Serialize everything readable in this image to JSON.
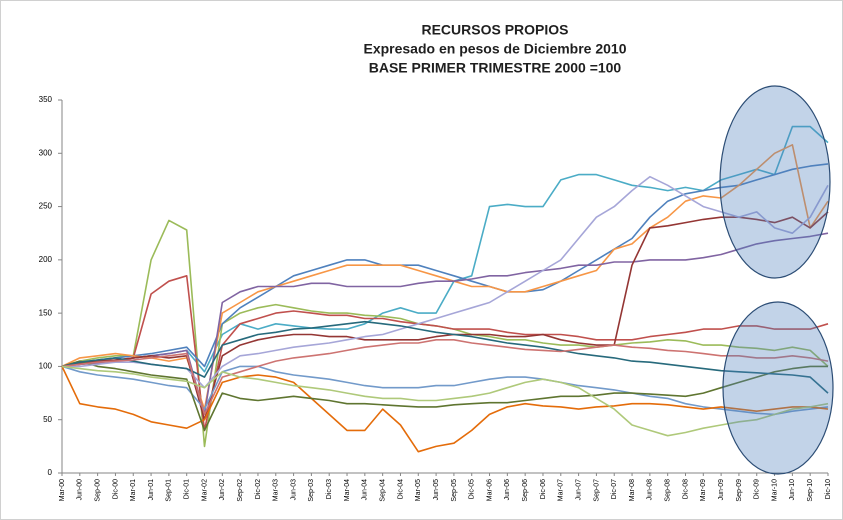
{
  "chart_data": {
    "type": "line",
    "title": [
      "RECURSOS PROPIOS",
      "Expresado en pesos de Diciembre 2010",
      "BASE PRIMER TRIMESTRE 2000 =100"
    ],
    "categories": [
      "Mar-00",
      "Jun-00",
      "Sep-00",
      "Dic-00",
      "Mar-01",
      "Jun-01",
      "Sep-01",
      "Dic-01",
      "Mar-02",
      "Jun-02",
      "Sep-02",
      "Dic-02",
      "Mar-03",
      "Jun-03",
      "Sep-03",
      "Dic-03",
      "Mar-04",
      "Jun-04",
      "Sep-04",
      "Dic-04",
      "Mar-05",
      "Jun-05",
      "Sep-05",
      "Dic-05",
      "Mar-06",
      "Jun-06",
      "Sep-06",
      "Dic-06",
      "Mar-07",
      "Jun-07",
      "Sep-07",
      "Dic-07",
      "Mar-08",
      "Jun-08",
      "Sep-08",
      "Dic-08",
      "Mar-09",
      "Jun-09",
      "Sep-09",
      "Dic-09",
      "Mar-10",
      "Jun-10",
      "Sep-10",
      "Dic-10"
    ],
    "ylim": [
      0,
      350
    ],
    "yticks": [
      0,
      50,
      100,
      150,
      200,
      250,
      300,
      350
    ],
    "grid": false,
    "series": [
      {
        "color": "#4BACC6",
        "values": [
          100,
          102,
          104,
          106,
          108,
          110,
          112,
          115,
          95,
          130,
          140,
          135,
          140,
          138,
          136,
          135,
          135,
          140,
          150,
          155,
          150,
          150,
          180,
          185,
          250,
          252,
          250,
          250,
          275,
          280,
          280,
          275,
          270,
          268,
          265,
          268,
          265,
          275,
          280,
          285,
          280,
          325,
          325,
          310
        ]
      },
      {
        "color": "#9BBB59",
        "values": [
          100,
          105,
          108,
          110,
          110,
          200,
          237,
          228,
          25,
          140,
          150,
          155,
          158,
          155,
          152,
          150,
          150,
          148,
          147,
          145,
          140,
          138,
          135,
          130,
          128,
          125,
          125,
          122,
          120,
          120,
          118,
          120,
          122,
          123,
          125,
          124,
          120,
          120,
          118,
          117,
          115,
          118,
          115,
          100
        ]
      },
      {
        "color": "#C0504D",
        "values": [
          100,
          102,
          104,
          105,
          108,
          168,
          180,
          185,
          40,
          120,
          140,
          145,
          150,
          152,
          150,
          148,
          148,
          145,
          145,
          142,
          140,
          138,
          135,
          135,
          135,
          132,
          130,
          130,
          130,
          128,
          125,
          125,
          125,
          128,
          130,
          132,
          135,
          135,
          138,
          138,
          135,
          135,
          135,
          140
        ]
      },
      {
        "color": "#4F81BD",
        "values": [
          100,
          104,
          106,
          108,
          110,
          112,
          115,
          118,
          100,
          140,
          155,
          165,
          175,
          185,
          190,
          195,
          200,
          200,
          195,
          195,
          195,
          190,
          185,
          180,
          175,
          170,
          170,
          172,
          180,
          190,
          200,
          210,
          220,
          240,
          255,
          262,
          265,
          268,
          270,
          275,
          280,
          285,
          288,
          290
        ]
      },
      {
        "color": "#F79646",
        "values": [
          100,
          108,
          110,
          112,
          110,
          108,
          105,
          108,
          60,
          150,
          160,
          170,
          175,
          180,
          185,
          190,
          195,
          195,
          195,
          195,
          190,
          185,
          180,
          175,
          175,
          170,
          170,
          175,
          180,
          185,
          190,
          210,
          215,
          230,
          240,
          255,
          260,
          258,
          270,
          285,
          300,
          308,
          230,
          255
        ]
      },
      {
        "color": "#8064A2",
        "values": [
          100,
          102,
          103,
          105,
          108,
          110,
          112,
          115,
          55,
          160,
          170,
          175,
          175,
          175,
          178,
          178,
          175,
          175,
          175,
          175,
          178,
          180,
          180,
          182,
          185,
          185,
          188,
          190,
          192,
          195,
          195,
          198,
          198,
          200,
          200,
          200,
          202,
          205,
          210,
          215,
          218,
          220,
          222,
          225
        ]
      },
      {
        "color": "#943634",
        "values": [
          100,
          103,
          105,
          106,
          108,
          110,
          108,
          110,
          50,
          110,
          120,
          125,
          128,
          130,
          130,
          128,
          128,
          125,
          125,
          125,
          125,
          128,
          130,
          130,
          130,
          128,
          128,
          130,
          125,
          122,
          120,
          120,
          195,
          230,
          232,
          235,
          238,
          240,
          240,
          238,
          235,
          240,
          230,
          245
        ]
      },
      {
        "color": "#729ACA",
        "values": [
          100,
          95,
          92,
          90,
          88,
          85,
          82,
          80,
          60,
          95,
          100,
          100,
          95,
          92,
          90,
          88,
          85,
          82,
          80,
          80,
          80,
          82,
          82,
          85,
          88,
          90,
          90,
          88,
          85,
          82,
          80,
          78,
          75,
          72,
          70,
          65,
          62,
          60,
          58,
          56,
          55,
          58,
          60,
          62
        ]
      },
      {
        "color": "#E46C0A",
        "values": [
          100,
          65,
          62,
          60,
          55,
          48,
          45,
          42,
          50,
          85,
          90,
          92,
          90,
          85,
          70,
          55,
          40,
          40,
          60,
          45,
          20,
          25,
          28,
          40,
          55,
          62,
          65,
          63,
          62,
          60,
          62,
          63,
          65,
          65,
          64,
          62,
          60,
          62,
          60,
          58,
          60,
          62,
          62,
          60
        ]
      },
      {
        "color": "#5F7530",
        "values": [
          100,
          105,
          100,
          98,
          95,
          92,
          90,
          88,
          40,
          75,
          70,
          68,
          70,
          72,
          70,
          68,
          65,
          65,
          64,
          63,
          62,
          62,
          64,
          65,
          66,
          66,
          68,
          70,
          72,
          72,
          73,
          75,
          75,
          74,
          73,
          72,
          75,
          80,
          85,
          90,
          95,
          98,
          100,
          100
        ]
      },
      {
        "color": "#A6A6D8",
        "values": [
          100,
          100,
          102,
          104,
          104,
          102,
          100,
          98,
          80,
          100,
          110,
          112,
          115,
          118,
          120,
          122,
          125,
          128,
          130,
          135,
          140,
          145,
          150,
          155,
          160,
          170,
          180,
          190,
          200,
          220,
          240,
          250,
          265,
          278,
          270,
          260,
          250,
          245,
          240,
          245,
          230,
          225,
          240,
          270
        ]
      },
      {
        "color": "#276A7C",
        "values": [
          100,
          104,
          106,
          108,
          105,
          102,
          100,
          98,
          90,
          120,
          125,
          130,
          132,
          135,
          136,
          138,
          140,
          142,
          140,
          138,
          135,
          132,
          130,
          128,
          125,
          122,
          120,
          118,
          115,
          112,
          110,
          108,
          105,
          104,
          102,
          100,
          98,
          96,
          95,
          94,
          93,
          92,
          90,
          75
        ]
      },
      {
        "color": "#CD7371",
        "values": [
          100,
          102,
          104,
          105,
          106,
          108,
          110,
          112,
          55,
          90,
          95,
          100,
          105,
          108,
          110,
          112,
          115,
          118,
          120,
          122,
          122,
          125,
          125,
          122,
          120,
          118,
          116,
          115,
          114,
          116,
          118,
          120,
          118,
          117,
          115,
          114,
          112,
          110,
          110,
          108,
          108,
          110,
          108,
          105
        ]
      },
      {
        "color": "#AFC97A",
        "values": [
          100,
          98,
          96,
          95,
          93,
          90,
          88,
          86,
          80,
          95,
          90,
          88,
          85,
          82,
          80,
          78,
          75,
          72,
          70,
          70,
          68,
          68,
          70,
          72,
          75,
          80,
          85,
          88,
          85,
          80,
          70,
          60,
          45,
          40,
          35,
          38,
          42,
          45,
          48,
          50,
          55,
          60,
          62,
          65
        ]
      }
    ]
  }
}
